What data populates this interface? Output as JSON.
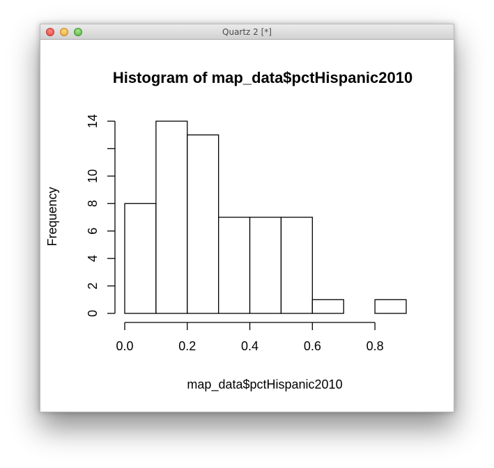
{
  "window": {
    "title": "Quartz 2 [*]"
  },
  "chart_data": {
    "type": "bar",
    "title": "Histogram of map_data$pctHispanic2010",
    "xlabel": "map_data$pctHispanic2010",
    "ylabel": "Frequency",
    "bins": [
      [
        0.0,
        0.1
      ],
      [
        0.1,
        0.2
      ],
      [
        0.2,
        0.3
      ],
      [
        0.3,
        0.4
      ],
      [
        0.4,
        0.5
      ],
      [
        0.5,
        0.6
      ],
      [
        0.6,
        0.7
      ],
      [
        0.7,
        0.8
      ],
      [
        0.8,
        0.9
      ]
    ],
    "values": [
      8,
      14,
      13,
      7,
      7,
      7,
      1,
      0,
      1
    ],
    "xlim": [
      0,
      0.9
    ],
    "ylim": [
      0,
      14
    ],
    "x_ticks": [
      0.0,
      0.2,
      0.4,
      0.6,
      0.8
    ],
    "x_tick_labels": [
      "0.0",
      "0.2",
      "0.4",
      "0.6",
      "0.8"
    ],
    "y_ticks": [
      0,
      2,
      4,
      6,
      8,
      10,
      12,
      14
    ],
    "y_tick_labels": [
      "0",
      "2",
      "4",
      "6",
      "8",
      "10",
      "",
      "14"
    ],
    "bar_fill": "#ffffff",
    "bar_stroke": "#000000",
    "grid": false
  }
}
